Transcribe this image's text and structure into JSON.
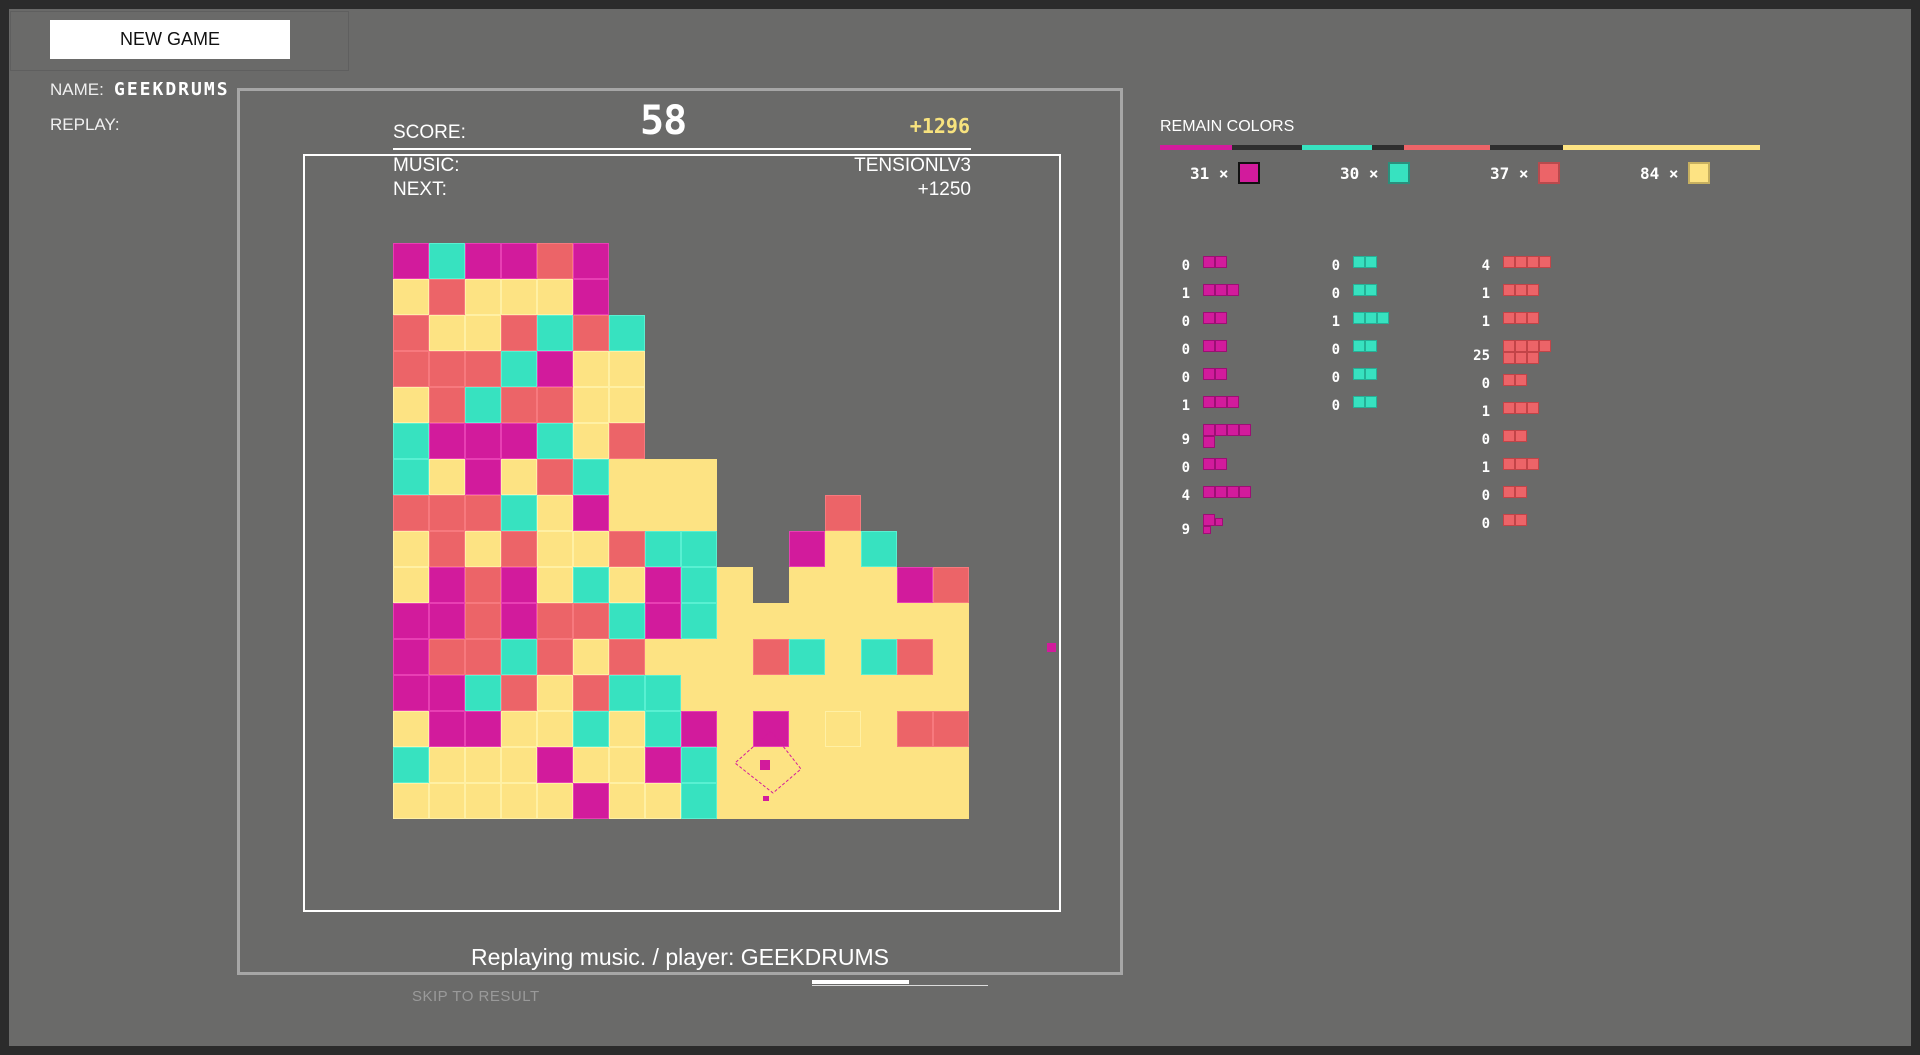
{
  "top": {
    "new_game_label": "NEW GAME",
    "name_label": "NAME:",
    "name_value": "GEEKDRUMS",
    "replay_label": "REPLAY:"
  },
  "hud": {
    "score_label": "SCORE:",
    "score_value": "58",
    "bonus": "+1296",
    "music_label": "MUSIC:",
    "music_value": "TENSIONLV3",
    "next_label": "NEXT:",
    "next_value": "+1250"
  },
  "colors": {
    "magenta": "#d21b9c",
    "cyan": "#37e2c0",
    "red": "#ec6468",
    "yellow": "#fde383",
    "background": "#6a6a69"
  },
  "board": {
    "cols": 16,
    "rows": 16,
    "legend": {
      "m": "magenta",
      "c": "cyan",
      "r": "red",
      "y": "yellow",
      "s": "yellow (settled)",
      ".": "empty"
    },
    "grid": [
      "mcmmrm..........",
      "yryyym..........",
      "ryyrcrc.........",
      "rrrcmyy.........",
      "yrcrryy.........",
      "cmmmcyr.........",
      "cymyrcsss.......",
      "rrrcymsss...r...",
      "yryryyrcc..msc..",
      "ymrmycymcs.sssmr",
      "mmrmrrcmcsssssss",
      "mrrcryrsssrcscrs",
      "mmcryrccssssssss",
      "ymmyycycmsmsysrr",
      "cyyymyymcsssssss",
      "yyyyymyycsssssss"
    ]
  },
  "footer": {
    "replay_message": "Replaying music. / player: GEEKDRUMS",
    "skip_label": "SKIP TO RESULT",
    "progress": 0.55
  },
  "remain": {
    "title": "REMAIN COLORS",
    "items": [
      {
        "count": "31 ×",
        "color": "magenta"
      },
      {
        "count": "30 ×",
        "color": "cyan"
      },
      {
        "count": "37 ×",
        "color": "red"
      },
      {
        "count": "84 ×",
        "color": "yellow"
      }
    ]
  },
  "pieces": {
    "magenta": [
      {
        "count": "0",
        "shape": [
          "xx"
        ]
      },
      {
        "count": "1",
        "shape": [
          "xxx"
        ]
      },
      {
        "count": "0",
        "shape": [
          "xx"
        ]
      },
      {
        "count": "0",
        "shape": [
          "xx"
        ]
      },
      {
        "count": "0",
        "shape": [
          "xx"
        ]
      },
      {
        "count": "1",
        "shape": [
          "xxx"
        ]
      },
      {
        "count": "9",
        "shape": [
          "xxxx",
          "x..."
        ]
      },
      {
        "count": "0",
        "shape": [
          "xx"
        ]
      },
      {
        "count": "4",
        "shape": [
          "xxxx"
        ]
      },
      {
        "count": "9",
        "shape": [
          "xo",
          "d."
        ]
      }
    ],
    "cyan": [
      {
        "count": "0",
        "shape": [
          "xx"
        ]
      },
      {
        "count": "0",
        "shape": [
          "xx"
        ]
      },
      {
        "count": "1",
        "shape": [
          "xxx"
        ]
      },
      {
        "count": "0",
        "shape": [
          "xx"
        ]
      },
      {
        "count": "0",
        "shape": [
          "xx"
        ]
      },
      {
        "count": "0",
        "shape": [
          "xx"
        ]
      }
    ],
    "red": [
      {
        "count": "4",
        "shape": [
          "xxxx"
        ]
      },
      {
        "count": "1",
        "shape": [
          "xxx"
        ]
      },
      {
        "count": "1",
        "shape": [
          "xxx"
        ]
      },
      {
        "count": "25",
        "shape": [
          "xxxx",
          "xxx."
        ]
      },
      {
        "count": "0",
        "shape": [
          "xx"
        ]
      },
      {
        "count": "1",
        "shape": [
          "xxx"
        ]
      },
      {
        "count": "0",
        "shape": [
          "xx"
        ]
      },
      {
        "count": "1",
        "shape": [
          "xxx"
        ]
      },
      {
        "count": "0",
        "shape": [
          "xx"
        ]
      },
      {
        "count": "0",
        "shape": [
          "xx"
        ]
      }
    ]
  }
}
